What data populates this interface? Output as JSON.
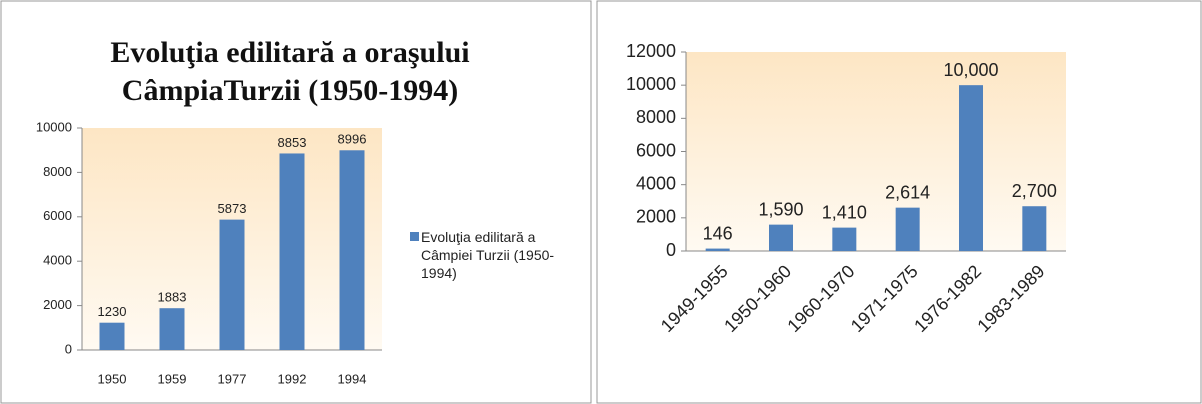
{
  "chart_data": [
    {
      "type": "bar",
      "title": "Evoluţia edilitară a oraşului CâmpiaTurzii (1950-1994)",
      "categories": [
        "1950",
        "1959",
        "1977",
        "1992",
        "1994"
      ],
      "series": [
        {
          "name": "Evoluţia edilitară a Câmpiei Turzii (1950-1994)",
          "color": "#4f81bd",
          "values": [
            1230,
            1883,
            5873,
            8853,
            8996
          ]
        }
      ],
      "ylim": [
        0,
        10000
      ],
      "yticks": [
        0,
        2000,
        4000,
        6000,
        8000,
        10000
      ],
      "legend": "right"
    },
    {
      "type": "bar",
      "categories": [
        "1949-1955",
        "1950-1960",
        "1960-1970",
        "1971-1975",
        "1976-1982",
        "1983-1989"
      ],
      "series": [
        {
          "color": "#4f81bd",
          "values": [
            146,
            1590,
            1410,
            2614,
            10000,
            2700
          ],
          "value_labels": [
            "146",
            "1,590",
            "1,410",
            "2,614",
            "10,000",
            "2,700"
          ]
        }
      ],
      "ylim": [
        0,
        12000
      ],
      "yticks": [
        0,
        2000,
        4000,
        6000,
        8000,
        10000,
        12000
      ]
    }
  ]
}
